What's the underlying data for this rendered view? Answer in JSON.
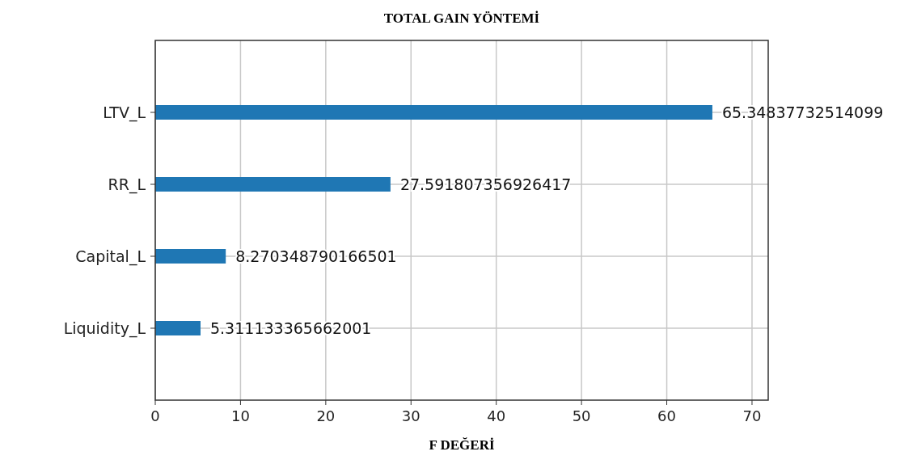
{
  "chart_data": {
    "type": "bar",
    "orientation": "horizontal",
    "title": "TOTAL GAIN YÖNTEMİ",
    "xlabel": "F DEĞERİ",
    "categories": [
      "LTV_L",
      "RR_L",
      "Capital_L",
      "Liquidity_L"
    ],
    "values": [
      65.34837732514099,
      27.591807356926417,
      8.270348790166501,
      5.311133365662001
    ],
    "color": "#1f77b4",
    "data_labels": true,
    "xlim": [
      0,
      71.9
    ],
    "xticks": [
      0,
      10,
      20,
      30,
      40,
      50,
      60,
      70
    ],
    "grid": true
  }
}
